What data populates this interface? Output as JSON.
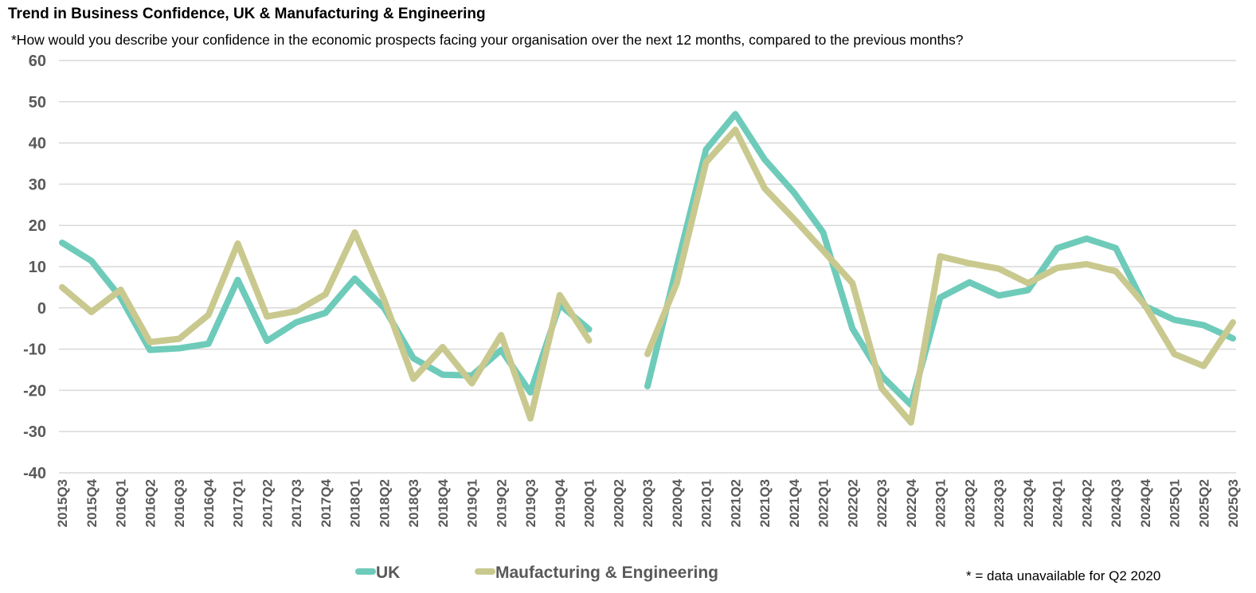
{
  "title": "Trend in Business Confidence, UK & Manufacturing & Engineering",
  "subtitle": "*How would you describe your confidence in the economic prospects facing your organisation over the next 12 months, compared to the previous months?",
  "note": "* = data unavailable for Q2 2020",
  "chart_data": {
    "type": "line",
    "title": "Trend in Business Confidence, UK & Manufacturing & Engineering",
    "ylim": [
      -40,
      60
    ],
    "yticks": [
      60,
      50,
      40,
      30,
      20,
      10,
      0,
      -10,
      -20,
      -30,
      -40
    ],
    "grid": true,
    "legend": "bottom",
    "categories": [
      "2015Q3",
      "2015Q4",
      "2016Q1",
      "2016Q2",
      "2016Q3",
      "2016Q4",
      "2017Q1",
      "2017Q2",
      "2017Q3",
      "2017Q4",
      "2018Q1",
      "2018Q2",
      "2018Q3",
      "2018Q4",
      "2019Q1",
      "2019Q2",
      "2019Q3",
      "2019Q4",
      "2020Q1",
      "2020Q2",
      "2020Q3",
      "2020Q4",
      "2021Q1",
      "2021Q2",
      "2021Q3",
      "2021Q4",
      "2022Q1",
      "2022Q2",
      "2022Q3",
      "2022Q4",
      "2023Q1",
      "2023Q2",
      "2023Q3",
      "2023Q4",
      "2024Q1",
      "2024Q2",
      "2024Q3",
      "2024Q4",
      "2025Q1",
      "2025Q2",
      "2025Q3"
    ],
    "series": [
      {
        "name": "UK",
        "color": "#6ecbba",
        "values": [
          15.8,
          11.4,
          2.5,
          -10.2,
          -9.8,
          -8.7,
          6.8,
          -8,
          -3.5,
          -1.2,
          7.1,
          0,
          -12.2,
          -16.2,
          -16.4,
          -10.2,
          -20.5,
          0.8,
          -5.2,
          null,
          -19,
          10,
          38.4,
          47,
          36,
          28,
          18.3,
          -5,
          -16.5,
          -23.5,
          2.5,
          6.2,
          3,
          4.3,
          14.5,
          16.8,
          14.5,
          0.4,
          -2.9,
          -4.2,
          -7.4
        ]
      },
      {
        "name": "Maufacturing & Engineering",
        "color": "#c9c98f",
        "values": [
          5,
          -1,
          4.4,
          -8.3,
          -7.5,
          -1.7,
          15.6,
          -2.1,
          -0.8,
          3.3,
          18.3,
          2,
          -17.2,
          -9.5,
          -18.3,
          -6.6,
          -26.8,
          3.1,
          -7.9,
          null,
          -11.2,
          6,
          35.3,
          43.2,
          29,
          21.6,
          13.9,
          6,
          -19.5,
          -27.8,
          12.5,
          10.8,
          9.5,
          6,
          9.7,
          10.6,
          8.9,
          0.6,
          -11.2,
          -14.1,
          -3.5
        ]
      }
    ]
  }
}
